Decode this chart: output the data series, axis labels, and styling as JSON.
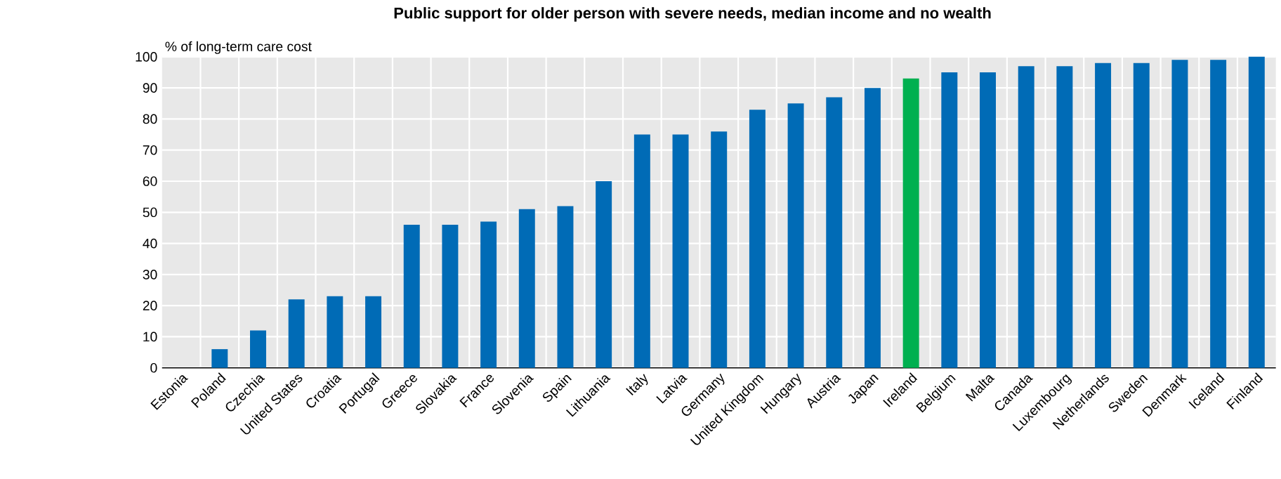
{
  "chart_data": {
    "type": "bar",
    "title": "Public support for older person with severe needs, median income and no wealth",
    "ylabel": "% of long-term care cost",
    "categories": [
      "Estonia",
      "Poland",
      "Czechia",
      "United States",
      "Croatia",
      "Portugal",
      "Greece",
      "Slovakia",
      "France",
      "Slovenia",
      "Spain",
      "Lithuania",
      "Italy",
      "Latvia",
      "Germany",
      "United Kingdom",
      "Hungary",
      "Austria",
      "Japan",
      "Ireland",
      "Belgium",
      "Malta",
      "Canada",
      "Luxembourg",
      "Netherlands",
      "Sweden",
      "Denmark",
      "Iceland",
      "Finland"
    ],
    "values": [
      0,
      6,
      12,
      22,
      23,
      23,
      46,
      46,
      47,
      51,
      52,
      60,
      75,
      75,
      76,
      83,
      85,
      87,
      90,
      93,
      95,
      95,
      97,
      97,
      98,
      98,
      99,
      99,
      100
    ],
    "colors": [
      "#006bb6",
      "#006bb6",
      "#006bb6",
      "#006bb6",
      "#006bb6",
      "#006bb6",
      "#006bb6",
      "#006bb6",
      "#006bb6",
      "#006bb6",
      "#006bb6",
      "#006bb6",
      "#006bb6",
      "#006bb6",
      "#006bb6",
      "#006bb6",
      "#006bb6",
      "#006bb6",
      "#006bb6",
      "#00b050",
      "#006bb6",
      "#006bb6",
      "#006bb6",
      "#006bb6",
      "#006bb6",
      "#006bb6",
      "#006bb6",
      "#006bb6",
      "#006bb6"
    ],
    "ylim": [
      0,
      100
    ],
    "yticks": [
      0,
      10,
      20,
      30,
      40,
      50,
      60,
      70,
      80,
      90,
      100
    ],
    "grid": true
  }
}
